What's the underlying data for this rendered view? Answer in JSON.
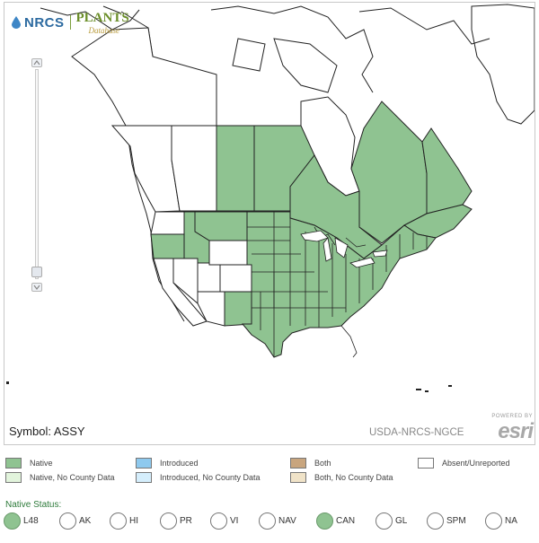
{
  "header": {
    "logo_left": "NRCS",
    "logo_right": "PLANTS",
    "logo_sub": "Database"
  },
  "map": {
    "symbol_label": "Symbol: ASSY",
    "source_label": "USDA-NRCS-NGCE",
    "attribution_powered": "POWERED BY",
    "attribution_brand": "esri",
    "colors": {
      "native": "#8fc391",
      "native_no_county": "#e2f4dc",
      "introduced": "#8ec9ee",
      "introduced_no_county": "#d5eefc",
      "both": "#c8a57e",
      "both_no_county": "#f0e3c8",
      "absent": "#ffffff",
      "border": "#222222"
    },
    "regions": [
      {
        "name": "Yukon/NWT",
        "status": "Absent"
      },
      {
        "name": "British Columbia",
        "status": "Absent"
      },
      {
        "name": "Alberta",
        "status": "Absent"
      },
      {
        "name": "Saskatchewan",
        "status": "Native"
      },
      {
        "name": "Manitoba",
        "status": "Native"
      },
      {
        "name": "Ontario",
        "status": "Native"
      },
      {
        "name": "Quebec",
        "status": "Native"
      },
      {
        "name": "Labrador",
        "status": "Native"
      },
      {
        "name": "Maritimes",
        "status": "Native"
      },
      {
        "name": "Washington",
        "status": "Absent"
      },
      {
        "name": "Oregon",
        "status": "Native"
      },
      {
        "name": "Idaho",
        "status": "Native"
      },
      {
        "name": "California",
        "status": "Absent"
      },
      {
        "name": "Nevada",
        "status": "Absent"
      },
      {
        "name": "Utah",
        "status": "Absent"
      },
      {
        "name": "Arizona",
        "status": "Absent"
      },
      {
        "name": "Wyoming",
        "status": "Absent"
      },
      {
        "name": "Colorado",
        "status": "Absent"
      },
      {
        "name": "New Mexico",
        "status": "Native"
      },
      {
        "name": "Montana",
        "status": "Native"
      },
      {
        "name": "Central & Eastern US",
        "status": "Native"
      }
    ]
  },
  "legend": {
    "native": "Native",
    "native_no_county": "Native, No County Data",
    "introduced": "Introduced",
    "introduced_no_county": "Introduced, No County Data",
    "both": "Both",
    "both_no_county": "Both, No County Data",
    "absent": "Absent/Unreported"
  },
  "native_status": {
    "label": "Native Status:",
    "options": [
      {
        "code": "L48",
        "selected": true
      },
      {
        "code": "AK",
        "selected": false
      },
      {
        "code": "HI",
        "selected": false
      },
      {
        "code": "PR",
        "selected": false
      },
      {
        "code": "VI",
        "selected": false
      },
      {
        "code": "NAV",
        "selected": false
      },
      {
        "code": "CAN",
        "selected": true
      },
      {
        "code": "GL",
        "selected": false
      },
      {
        "code": "SPM",
        "selected": false
      },
      {
        "code": "NA",
        "selected": false
      }
    ]
  }
}
